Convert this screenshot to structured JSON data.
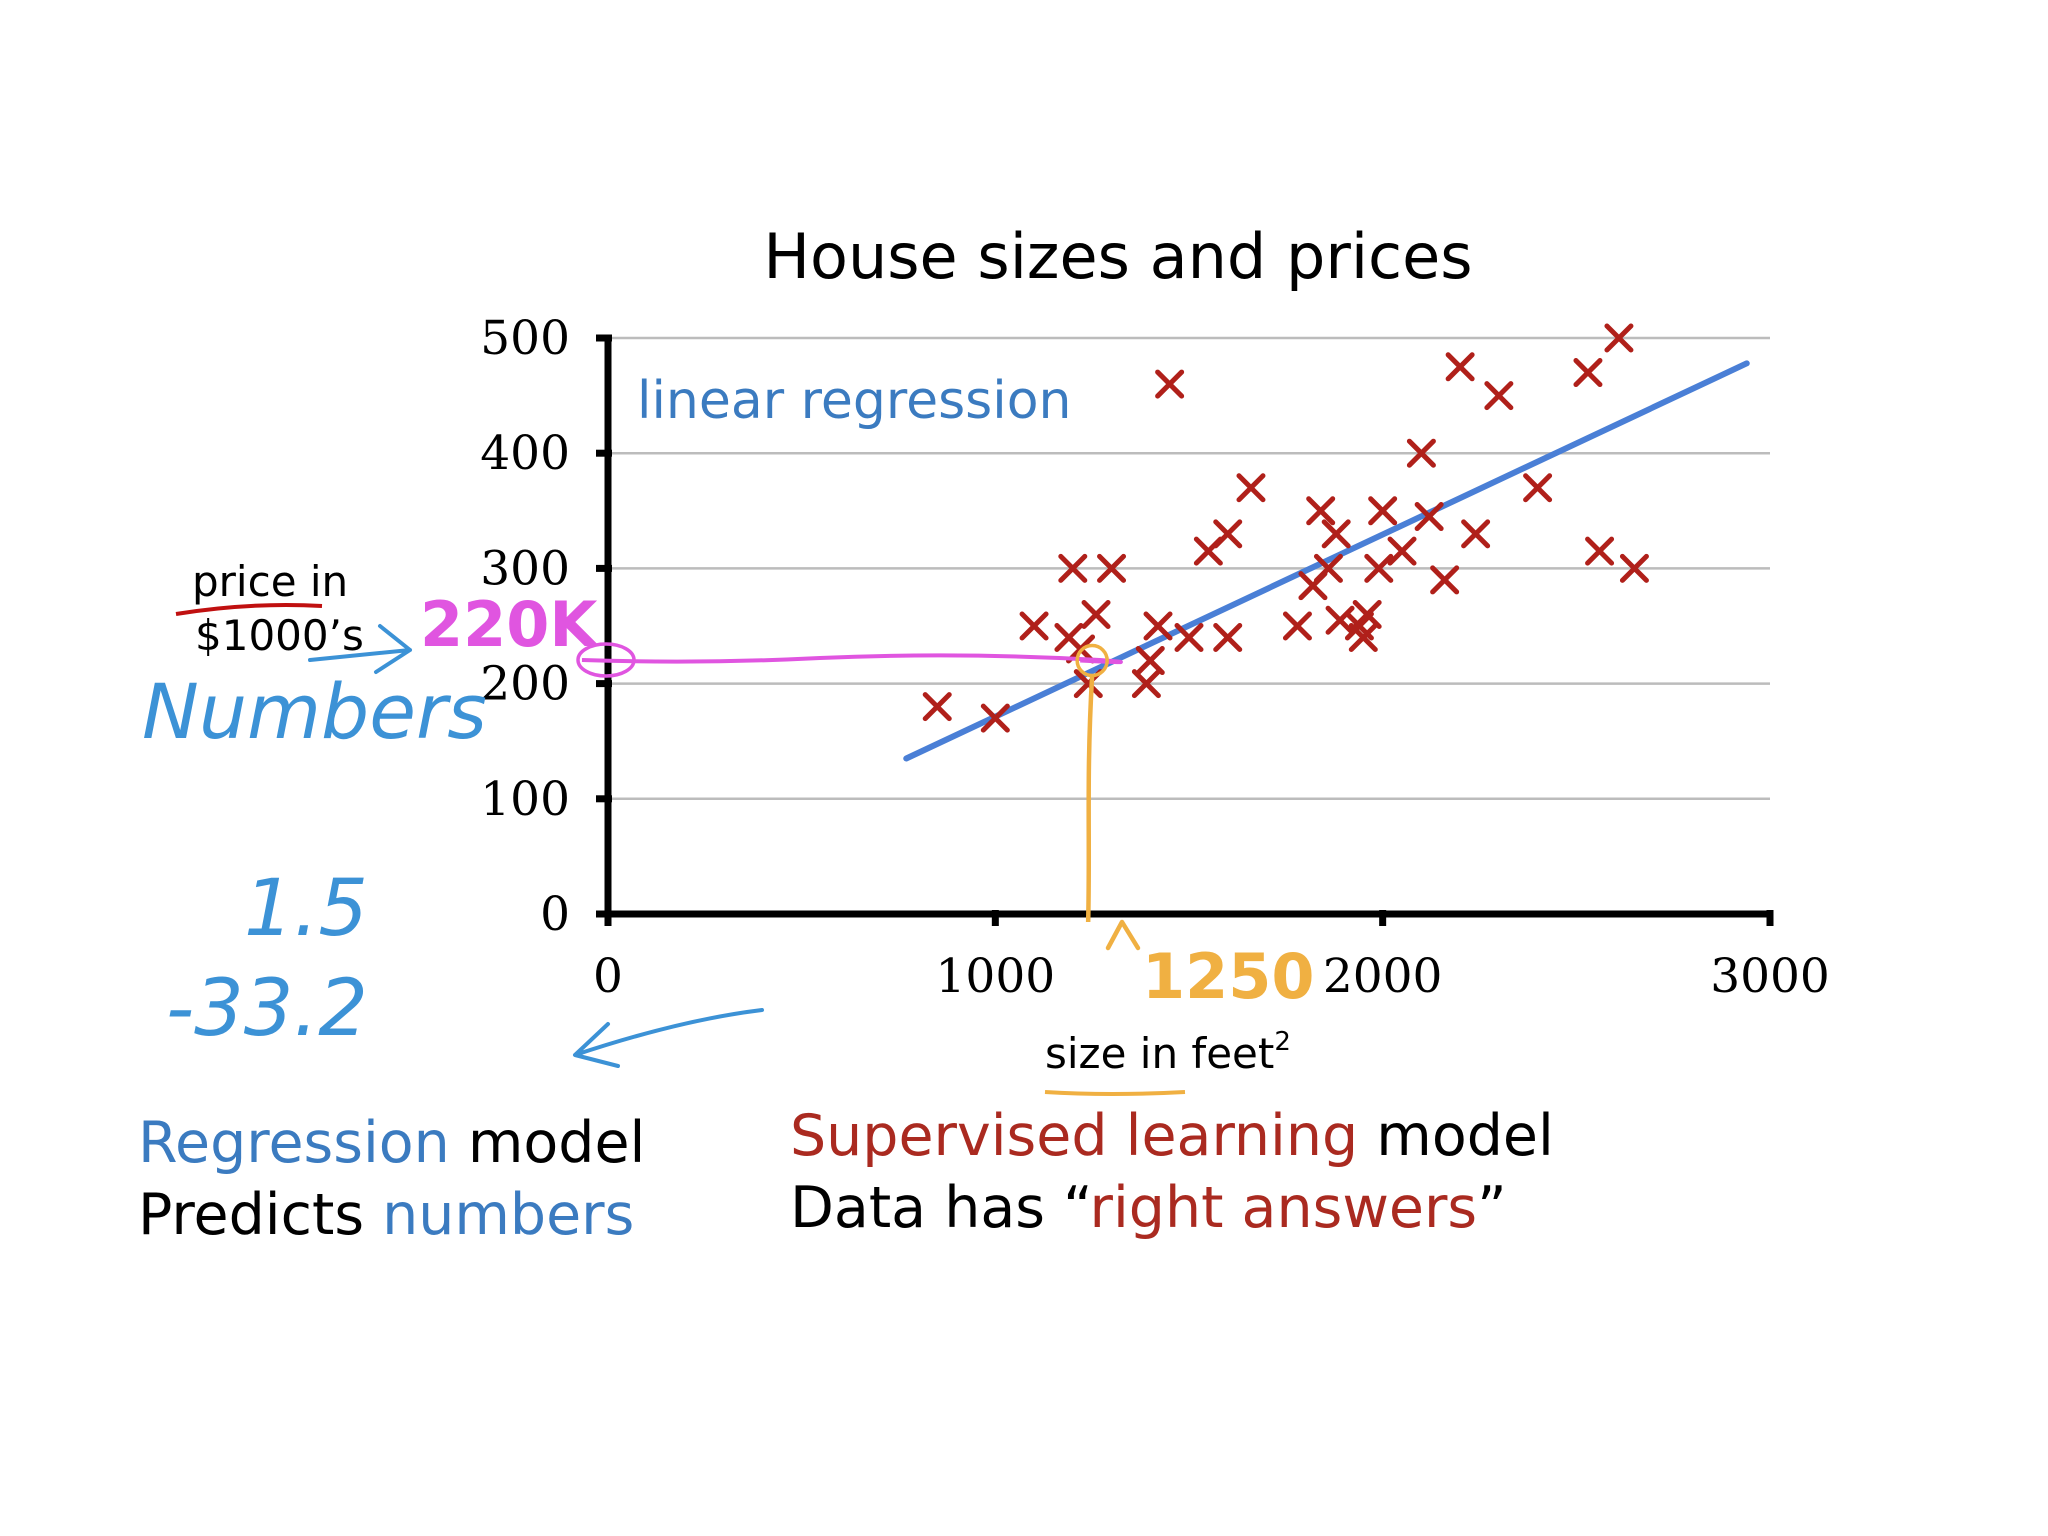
{
  "colors": {
    "points": "#b0201a",
    "regression_line": "#4a7fd6",
    "annotation_blue": "#3c92d6",
    "annotation_magenta": "#e055e0",
    "annotation_orange": "#f0b042",
    "annotation_red": "#c01010",
    "text_blue": "#3b7bc0",
    "text_red": "#aa2a20"
  },
  "chart_data": {
    "type": "scatter",
    "title": "House sizes and prices",
    "xlabel": "size in feet",
    "xlabel_sup": "2",
    "ylabel": [
      "price in",
      "$1000’s"
    ],
    "xlim": [
      0,
      3000
    ],
    "ylim": [
      0,
      500
    ],
    "x_ticks": [
      0,
      1000,
      2000,
      3000
    ],
    "x_tick_labels": [
      "0",
      "1000",
      "2000",
      "3000"
    ],
    "y_ticks": [
      0,
      100,
      200,
      300,
      400,
      500
    ],
    "y_tick_labels": [
      "0",
      "100",
      "200",
      "300",
      "400",
      "500"
    ],
    "grid": "horizontal",
    "series": [
      {
        "name": "houses",
        "points": [
          [
            850,
            180
          ],
          [
            1000,
            170
          ],
          [
            1100,
            250
          ],
          [
            1190,
            240
          ],
          [
            1200,
            300
          ],
          [
            1220,
            230
          ],
          [
            1240,
            200
          ],
          [
            1260,
            260
          ],
          [
            1300,
            300
          ],
          [
            1390,
            200
          ],
          [
            1400,
            220
          ],
          [
            1420,
            250
          ],
          [
            1450,
            460
          ],
          [
            1500,
            240
          ],
          [
            1550,
            315
          ],
          [
            1600,
            330
          ],
          [
            1600,
            240
          ],
          [
            1660,
            370
          ],
          [
            1780,
            250
          ],
          [
            1820,
            285
          ],
          [
            1840,
            350
          ],
          [
            1860,
            300
          ],
          [
            1880,
            330
          ],
          [
            1890,
            255
          ],
          [
            1940,
            250
          ],
          [
            1950,
            240
          ],
          [
            1960,
            260
          ],
          [
            1990,
            300
          ],
          [
            2000,
            350
          ],
          [
            2050,
            315
          ],
          [
            2100,
            400
          ],
          [
            2120,
            345
          ],
          [
            2160,
            290
          ],
          [
            2200,
            475
          ],
          [
            2240,
            330
          ],
          [
            2300,
            450
          ],
          [
            2400,
            370
          ],
          [
            2530,
            470
          ],
          [
            2560,
            315
          ],
          [
            2610,
            500
          ],
          [
            2650,
            300
          ]
        ]
      }
    ],
    "regression_line": {
      "name": "linear regression",
      "x": [
        770,
        2940
      ],
      "y": [
        135,
        478
      ]
    },
    "annotations": {
      "prediction_x": 1250,
      "prediction_y": 220,
      "x_label": "1250",
      "y_label": "220K"
    }
  },
  "handwriting": {
    "numbers_label": "Numbers",
    "example_1": "1.5",
    "example_2": "-33.2"
  },
  "footer": {
    "left": {
      "line1_highlight": "Regression",
      "line1_rest": " model",
      "line2_start": "Predicts ",
      "line2_highlight": "numbers"
    },
    "right": {
      "line1_highlight": "Supervised learning",
      "line1_rest": " model",
      "line2_start": "Data has “",
      "line2_highlight": "right answers",
      "line2_end": "”"
    }
  }
}
